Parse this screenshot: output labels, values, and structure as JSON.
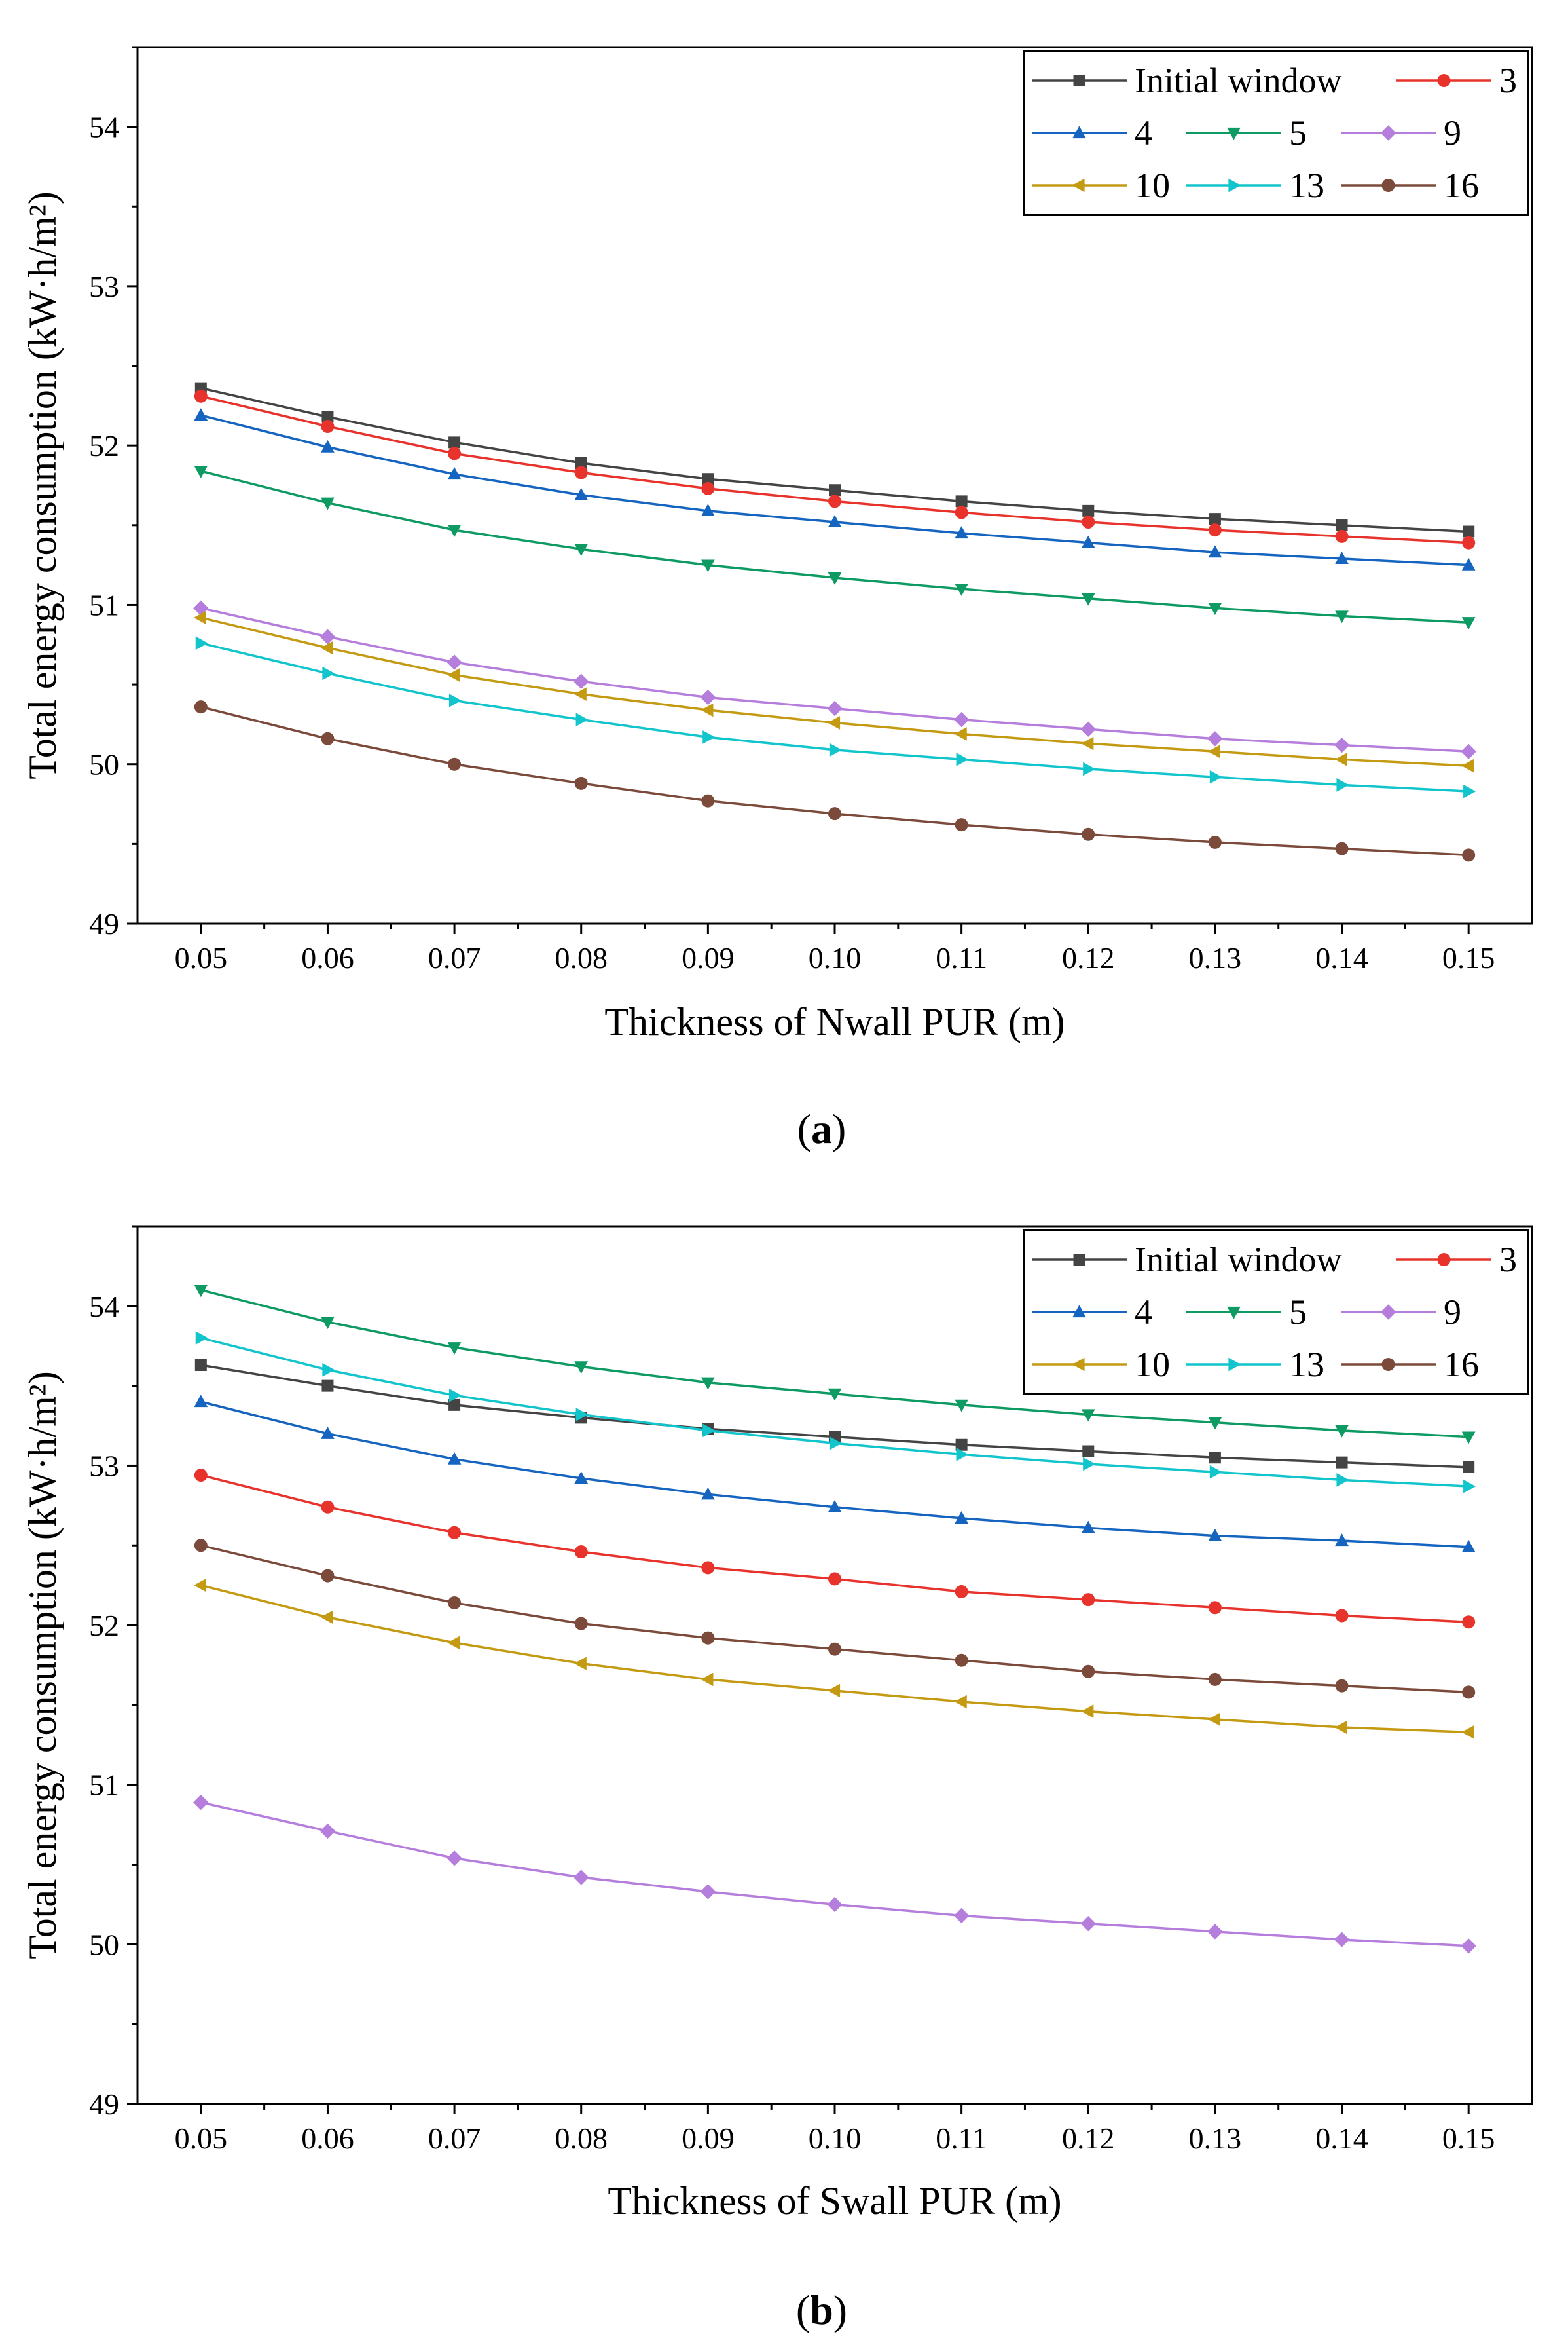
{
  "chart_data": [
    {
      "type": "line",
      "caption": "a",
      "xlabel": "Thickness of Nwall PUR (m)",
      "ylabel": "Total energy consumption (kW·h/m²)",
      "x": [
        0.05,
        0.06,
        0.07,
        0.08,
        0.09,
        0.1,
        0.11,
        0.12,
        0.13,
        0.14,
        0.15
      ],
      "x_tick_labels": [
        "0.05",
        "0.06",
        "0.07",
        "0.08",
        "0.09",
        "0.10",
        "0.11",
        "0.12",
        "0.13",
        "0.14",
        "0.15"
      ],
      "xlim": [
        0.045,
        0.155
      ],
      "ylim": [
        49,
        54.5
      ],
      "y_ticks": [
        49,
        50,
        51,
        52,
        53,
        54
      ],
      "y_tick_labels": [
        "49",
        "50",
        "51",
        "52",
        "53",
        "54"
      ],
      "legend_location": "top-right",
      "series": [
        {
          "name": "Initial window",
          "color": "#444444",
          "marker": "square",
          "values": [
            52.36,
            52.18,
            52.02,
            51.89,
            51.79,
            51.72,
            51.65,
            51.59,
            51.54,
            51.5,
            51.46
          ]
        },
        {
          "name": "3",
          "color": "#e8332c",
          "marker": "circle",
          "values": [
            52.31,
            52.12,
            51.95,
            51.83,
            51.73,
            51.65,
            51.58,
            51.52,
            51.47,
            51.43,
            51.39
          ]
        },
        {
          "name": "4",
          "color": "#1565c0",
          "marker": "triangle-up",
          "values": [
            52.19,
            51.99,
            51.82,
            51.69,
            51.59,
            51.52,
            51.45,
            51.39,
            51.33,
            51.29,
            51.25
          ]
        },
        {
          "name": "5",
          "color": "#0e9a63",
          "marker": "triangle-down",
          "values": [
            51.84,
            51.64,
            51.47,
            51.35,
            51.25,
            51.17,
            51.1,
            51.04,
            50.98,
            50.93,
            50.89
          ]
        },
        {
          "name": "9",
          "color": "#b57edc",
          "marker": "diamond",
          "values": [
            50.98,
            50.8,
            50.64,
            50.52,
            50.42,
            50.35,
            50.28,
            50.22,
            50.16,
            50.12,
            50.08
          ]
        },
        {
          "name": "10",
          "color": "#c49a12",
          "marker": "triangle-left",
          "values": [
            50.92,
            50.73,
            50.56,
            50.44,
            50.34,
            50.26,
            50.19,
            50.13,
            50.08,
            50.03,
            49.99
          ]
        },
        {
          "name": "13",
          "color": "#12c4cc",
          "marker": "triangle-right",
          "values": [
            50.76,
            50.57,
            50.4,
            50.28,
            50.17,
            50.09,
            50.03,
            49.97,
            49.92,
            49.87,
            49.83
          ]
        },
        {
          "name": "16",
          "color": "#7b4a3a",
          "marker": "circle",
          "values": [
            50.36,
            50.16,
            50.0,
            49.88,
            49.77,
            49.69,
            49.62,
            49.56,
            49.51,
            49.47,
            49.43
          ]
        }
      ]
    },
    {
      "type": "line",
      "caption": "b",
      "xlabel": "Thickness of Swall PUR (m)",
      "ylabel": "Total energy consumption (kW·h/m²)",
      "x": [
        0.05,
        0.06,
        0.07,
        0.08,
        0.09,
        0.1,
        0.11,
        0.12,
        0.13,
        0.14,
        0.15
      ],
      "x_tick_labels": [
        "0.05",
        "0.06",
        "0.07",
        "0.08",
        "0.09",
        "0.10",
        "0.11",
        "0.12",
        "0.13",
        "0.14",
        "0.15"
      ],
      "xlim": [
        0.045,
        0.155
      ],
      "ylim": [
        49,
        54.5
      ],
      "y_ticks": [
        49,
        50,
        51,
        52,
        53,
        54
      ],
      "y_tick_labels": [
        "49",
        "50",
        "51",
        "52",
        "53",
        "54"
      ],
      "legend_location": "top-right",
      "series": [
        {
          "name": "Initial window",
          "color": "#444444",
          "marker": "square",
          "values": [
            53.63,
            53.5,
            53.38,
            53.3,
            53.23,
            53.18,
            53.13,
            53.09,
            53.05,
            53.02,
            52.99
          ]
        },
        {
          "name": "3",
          "color": "#e8332c",
          "marker": "circle",
          "values": [
            52.94,
            52.74,
            52.58,
            52.46,
            52.36,
            52.29,
            52.21,
            52.16,
            52.11,
            52.06,
            52.02
          ]
        },
        {
          "name": "4",
          "color": "#1565c0",
          "marker": "triangle-up",
          "values": [
            53.4,
            53.2,
            53.04,
            52.92,
            52.82,
            52.74,
            52.67,
            52.61,
            52.56,
            52.53,
            52.49
          ]
        },
        {
          "name": "5",
          "color": "#0e9a63",
          "marker": "triangle-down",
          "values": [
            54.1,
            53.9,
            53.74,
            53.62,
            53.52,
            53.45,
            53.38,
            53.32,
            53.27,
            53.22,
            53.18
          ]
        },
        {
          "name": "9",
          "color": "#b57edc",
          "marker": "diamond",
          "values": [
            50.89,
            50.71,
            50.54,
            50.42,
            50.33,
            50.25,
            50.18,
            50.13,
            50.08,
            50.03,
            49.99
          ]
        },
        {
          "name": "10",
          "color": "#c49a12",
          "marker": "triangle-left",
          "values": [
            52.25,
            52.05,
            51.89,
            51.76,
            51.66,
            51.59,
            51.52,
            51.46,
            51.41,
            51.36,
            51.33
          ]
        },
        {
          "name": "13",
          "color": "#12c4cc",
          "marker": "triangle-right",
          "values": [
            53.8,
            53.6,
            53.44,
            53.32,
            53.22,
            53.14,
            53.07,
            53.01,
            52.96,
            52.91,
            52.87
          ]
        },
        {
          "name": "16",
          "color": "#7b4a3a",
          "marker": "circle",
          "values": [
            52.5,
            52.31,
            52.14,
            52.01,
            51.92,
            51.85,
            51.78,
            51.71,
            51.66,
            51.62,
            51.58
          ]
        }
      ]
    }
  ]
}
